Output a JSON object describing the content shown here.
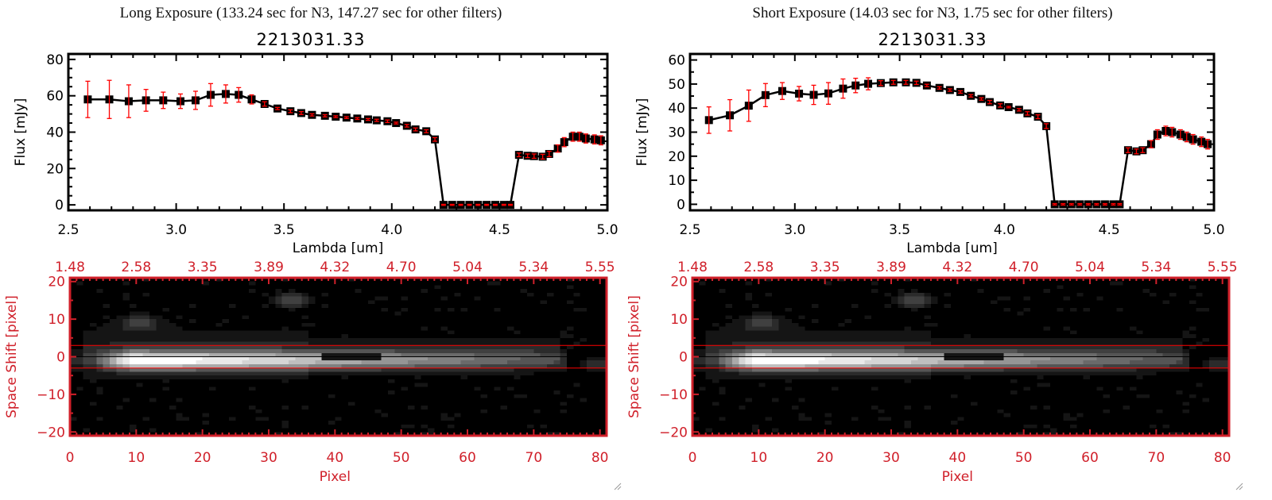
{
  "panels": [
    {
      "title": "Long Exposure (133.24 sec for N3, 147.27 sec for other filters)",
      "object": "2213031.33"
    },
    {
      "title": "Short Exposure (14.03 sec for N3, 1.75 sec for other filters)",
      "object": "2213031.33"
    }
  ],
  "chart_data": [
    {
      "type": "line",
      "title": "2213031.33",
      "xlabel": "Lambda [um]",
      "ylabel": "Flux [mJy]",
      "xlim": [
        2.5,
        5.0
      ],
      "ylim": [
        -3,
        83
      ],
      "x_ticks": [
        "2.5",
        "3.0",
        "3.5",
        "4.0",
        "4.5",
        "5.0"
      ],
      "y_ticks": [
        "0",
        "20",
        "40",
        "60",
        "80"
      ],
      "marker": "square",
      "line_color": "#000000",
      "errorbar_color": "#ff0000",
      "x": [
        2.59,
        2.69,
        2.78,
        2.86,
        2.94,
        3.02,
        3.09,
        3.16,
        3.23,
        3.29,
        3.35,
        3.41,
        3.47,
        3.53,
        3.58,
        3.63,
        3.69,
        3.74,
        3.79,
        3.84,
        3.89,
        3.93,
        3.98,
        4.02,
        4.07,
        4.11,
        4.16,
        4.2,
        4.24,
        4.28,
        4.32,
        4.36,
        4.4,
        4.44,
        4.48,
        4.52,
        4.55,
        4.59,
        4.63,
        4.66,
        4.7,
        4.73,
        4.77,
        4.8,
        4.84,
        4.87,
        4.9,
        4.94,
        4.97
      ],
      "y": [
        58,
        58,
        57,
        57.5,
        57.5,
        57,
        57.5,
        60.5,
        61,
        60.5,
        58,
        55.5,
        53,
        51.5,
        50.5,
        49.5,
        49,
        48.5,
        48,
        47.5,
        47,
        46.5,
        46,
        45,
        43.5,
        41.5,
        40.5,
        36,
        0,
        0,
        0,
        0,
        0,
        0,
        0,
        0,
        0,
        27.5,
        27,
        26.8,
        26.5,
        28,
        31,
        34.5,
        37.5,
        37.5,
        36.5,
        36,
        35.5
      ],
      "yerr": [
        10,
        10.5,
        9,
        6,
        4.5,
        4,
        5,
        6.2,
        5,
        4,
        2.5,
        1.2,
        0.6,
        0.8,
        0.8,
        0.6,
        0.6,
        0.5,
        0.5,
        0.5,
        0.5,
        0.6,
        0.7,
        0.5,
        0.7,
        0.8,
        0.8,
        1,
        0.3,
        0.3,
        0.3,
        0.3,
        0.3,
        0.3,
        0.3,
        0.3,
        0.3,
        1,
        1,
        1.2,
        1.3,
        1.5,
        2,
        2.5,
        2.5,
        2.5,
        2.5,
        2.5,
        2.5
      ]
    },
    {
      "type": "line",
      "title": "2213031.33",
      "xlabel": "Lambda [um]",
      "ylabel": "Flux [mJy]",
      "xlim": [
        2.5,
        5.0
      ],
      "ylim": [
        -2.5,
        62.5
      ],
      "x_ticks": [
        "2.5",
        "3.0",
        "3.5",
        "4.0",
        "4.5",
        "5.0"
      ],
      "y_ticks": [
        "0",
        "10",
        "20",
        "30",
        "40",
        "50",
        "60"
      ],
      "marker": "square",
      "line_color": "#000000",
      "errorbar_color": "#ff0000",
      "x": [
        2.59,
        2.69,
        2.78,
        2.86,
        2.94,
        3.02,
        3.09,
        3.16,
        3.23,
        3.29,
        3.35,
        3.41,
        3.47,
        3.53,
        3.58,
        3.63,
        3.69,
        3.74,
        3.79,
        3.84,
        3.89,
        3.93,
        3.98,
        4.02,
        4.07,
        4.11,
        4.16,
        4.2,
        4.24,
        4.28,
        4.32,
        4.36,
        4.4,
        4.44,
        4.48,
        4.52,
        4.55,
        4.59,
        4.63,
        4.66,
        4.7,
        4.73,
        4.77,
        4.8,
        4.84,
        4.87,
        4.9,
        4.94,
        4.97
      ],
      "y": [
        35,
        37,
        41,
        45.4,
        47.1,
        46,
        45.5,
        46.1,
        48.1,
        49.4,
        50.1,
        50.4,
        50.7,
        50.7,
        50.5,
        49.4,
        48.4,
        47.5,
        46.7,
        45.1,
        43.8,
        42.5,
        41.1,
        40.4,
        39.3,
        37.8,
        36.4,
        32.5,
        0,
        0,
        0,
        0,
        0,
        0,
        0,
        0,
        0,
        22.5,
        22,
        22.5,
        25,
        29,
        30.5,
        30,
        29,
        28,
        27,
        26,
        25
      ],
      "yerr": [
        5.5,
        6.5,
        6.5,
        4.8,
        3.5,
        3,
        4,
        4.5,
        4,
        3,
        2.5,
        1,
        0.8,
        0.8,
        0.7,
        0.5,
        0.5,
        0.5,
        0.5,
        0.5,
        0.5,
        0.7,
        0.7,
        0.3,
        0.5,
        0.7,
        0.8,
        1,
        0.3,
        0.3,
        0.3,
        0.3,
        0.3,
        0.3,
        0.3,
        0.3,
        0.3,
        1,
        1,
        1,
        1.5,
        2,
        2,
        2,
        2,
        2,
        2,
        2,
        2
      ]
    },
    {
      "type": "heatmap",
      "xlabel": "Pixel",
      "ylabel": "Space Shift [pixel]",
      "xlim": [
        0,
        81
      ],
      "ylim": [
        -21,
        21
      ],
      "x_ticks": [
        "0",
        "10",
        "20",
        "30",
        "40",
        "50",
        "60",
        "70",
        "80"
      ],
      "top_ticks": [
        "1.48",
        "2.58",
        "3.35",
        "3.89",
        "4.32",
        "4.70",
        "5.04",
        "5.34",
        "5.55"
      ],
      "y_ticks": [
        "-20",
        "-10",
        "0",
        "10",
        "20"
      ],
      "colormap": "grayscale",
      "axis_color": "#d0202a",
      "aperture_lines": [
        -3,
        3
      ],
      "aperture_color": "#ff0000",
      "center_line": 0
    },
    {
      "type": "heatmap",
      "xlabel": "Pixel",
      "ylabel": "Space Shift [pixel]",
      "xlim": [
        0,
        81
      ],
      "ylim": [
        -21,
        21
      ],
      "x_ticks": [
        "0",
        "10",
        "20",
        "30",
        "40",
        "50",
        "60",
        "70",
        "80"
      ],
      "top_ticks": [
        "1.48",
        "2.58",
        "3.35",
        "3.89",
        "4.32",
        "4.70",
        "5.04",
        "5.34",
        "5.55"
      ],
      "y_ticks": [
        "-20",
        "-10",
        "0",
        "10",
        "20"
      ],
      "colormap": "grayscale",
      "axis_color": "#d0202a",
      "aperture_lines": [
        -3,
        3
      ],
      "aperture_color": "#ff0000",
      "center_line": 0
    }
  ]
}
